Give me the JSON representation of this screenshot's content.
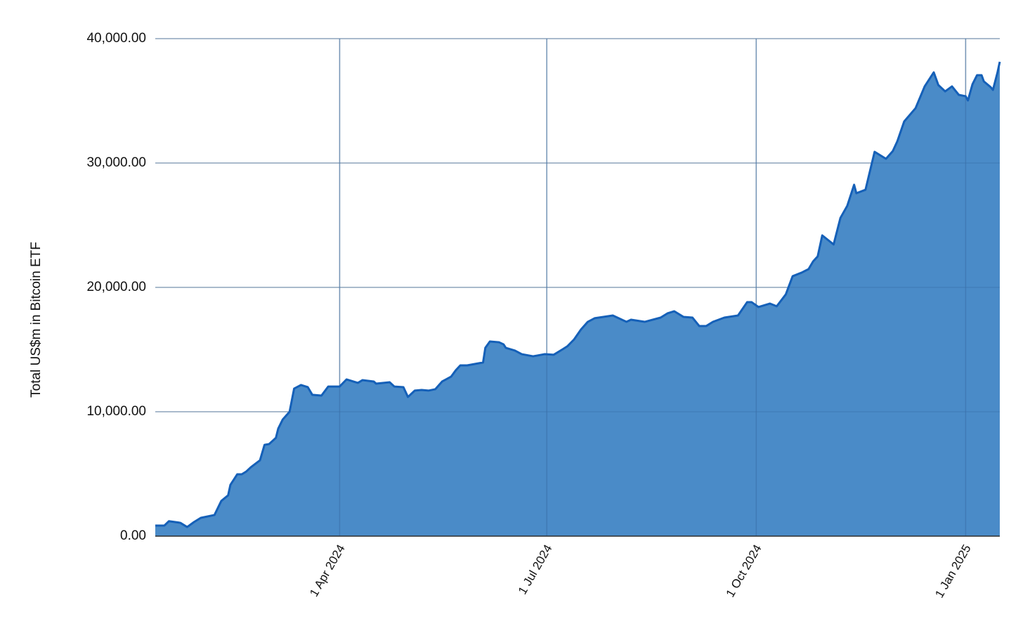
{
  "chart_data": {
    "type": "area",
    "y_label": "Total US$m in Bitcoin ETF",
    "grid": true,
    "line_color": "#1560b8",
    "fill_color": "#4a8bc8",
    "xlim": [
      "2024-01-11",
      "2025-01-16"
    ],
    "xticks": [
      {
        "value": "2024-04-01",
        "label": "1 Apr 2024"
      },
      {
        "value": "2024-07-01",
        "label": "1 Jul 2024"
      },
      {
        "value": "2024-10-01",
        "label": "1 Oct 2024"
      },
      {
        "value": "2025-01-01",
        "label": "1 Jan 2025"
      }
    ],
    "ylim": [
      0,
      40000
    ],
    "yticks": [
      {
        "value": 0,
        "label": "0.00"
      },
      {
        "value": 10000,
        "label": "10,000.00"
      },
      {
        "value": 20000,
        "label": "20,000.00"
      },
      {
        "value": 30000,
        "label": "30,000.00"
      },
      {
        "value": 40000,
        "label": "40,000.00"
      }
    ],
    "x": [
      "2024-01-11",
      "2024-01-15",
      "2024-01-17",
      "2024-01-22",
      "2024-01-25",
      "2024-01-28",
      "2024-01-31",
      "2024-02-06",
      "2024-02-09",
      "2024-02-12",
      "2024-02-13",
      "2024-02-16",
      "2024-02-18",
      "2024-02-20",
      "2024-02-22",
      "2024-02-26",
      "2024-02-28",
      "2024-03-01",
      "2024-03-04",
      "2024-03-05",
      "2024-03-07",
      "2024-03-10",
      "2024-03-12",
      "2024-03-15",
      "2024-03-18",
      "2024-03-20",
      "2024-03-24",
      "2024-03-27",
      "2024-04-01",
      "2024-04-04",
      "2024-04-09",
      "2024-04-11",
      "2024-04-16",
      "2024-04-17",
      "2024-04-23",
      "2024-04-25",
      "2024-04-29",
      "2024-05-01",
      "2024-05-04",
      "2024-05-07",
      "2024-05-10",
      "2024-05-13",
      "2024-05-16",
      "2024-05-20",
      "2024-05-22",
      "2024-05-24",
      "2024-05-27",
      "2024-06-03",
      "2024-06-04",
      "2024-06-06",
      "2024-06-10",
      "2024-06-12",
      "2024-06-13",
      "2024-06-17",
      "2024-06-20",
      "2024-06-25",
      "2024-06-30",
      "2024-07-04",
      "2024-07-08",
      "2024-07-10",
      "2024-07-13",
      "2024-07-16",
      "2024-07-19",
      "2024-07-22",
      "2024-07-30",
      "2024-08-01",
      "2024-08-05",
      "2024-08-07",
      "2024-08-13",
      "2024-08-20",
      "2024-08-23",
      "2024-08-26",
      "2024-08-30",
      "2024-09-03",
      "2024-09-06",
      "2024-09-09",
      "2024-09-12",
      "2024-09-17",
      "2024-09-23",
      "2024-09-27",
      "2024-09-29",
      "2024-10-02",
      "2024-10-07",
      "2024-10-10",
      "2024-10-14",
      "2024-10-17",
      "2024-10-21",
      "2024-10-24",
      "2024-10-26",
      "2024-10-28",
      "2024-10-30",
      "2024-11-04",
      "2024-11-07",
      "2024-11-10",
      "2024-11-13",
      "2024-11-14",
      "2024-11-18",
      "2024-11-22",
      "2024-11-27",
      "2024-11-30",
      "2024-12-02",
      "2024-12-05",
      "2024-12-10",
      "2024-12-14",
      "2024-12-18",
      "2024-12-20",
      "2024-12-23",
      "2024-12-26",
      "2024-12-29",
      "2025-01-01",
      "2025-01-02",
      "2025-01-04",
      "2025-01-06",
      "2025-01-08",
      "2025-01-09",
      "2025-01-12",
      "2025-01-13",
      "2025-01-15",
      "2025-01-16"
    ],
    "values": [
      850,
      850,
      1200,
      1070,
      730,
      1130,
      1470,
      1700,
      2830,
      3280,
      4120,
      4970,
      4970,
      5200,
      5540,
      6100,
      7340,
      7400,
      7900,
      8640,
      9380,
      10000,
      11860,
      12150,
      11980,
      11360,
      11300,
      12030,
      12030,
      12600,
      12320,
      12540,
      12430,
      12260,
      12370,
      12030,
      11980,
      11190,
      11700,
      11750,
      11700,
      11810,
      12430,
      12830,
      13330,
      13730,
      13730,
      13960,
      15140,
      15650,
      15590,
      15420,
      15140,
      14920,
      14630,
      14460,
      14630,
      14580,
      15030,
      15260,
      15820,
      16610,
      17230,
      17520,
      17740,
      17570,
      17230,
      17400,
      17230,
      17570,
      17910,
      18080,
      17630,
      17570,
      16890,
      16890,
      17230,
      17570,
      17740,
      18810,
      18810,
      18420,
      18700,
      18480,
      19440,
      20900,
      21190,
      21470,
      22090,
      22490,
      24180,
      23450,
      25590,
      26560,
      28250,
      27570,
      27850,
      30900,
      30340,
      30960,
      31750,
      33340,
      34410,
      36160,
      37290,
      36270,
      35760,
      36160,
      35480,
      35370,
      35030,
      36330,
      37060,
      37060,
      36560,
      36100,
      35880,
      37290,
      38140
    ]
  }
}
